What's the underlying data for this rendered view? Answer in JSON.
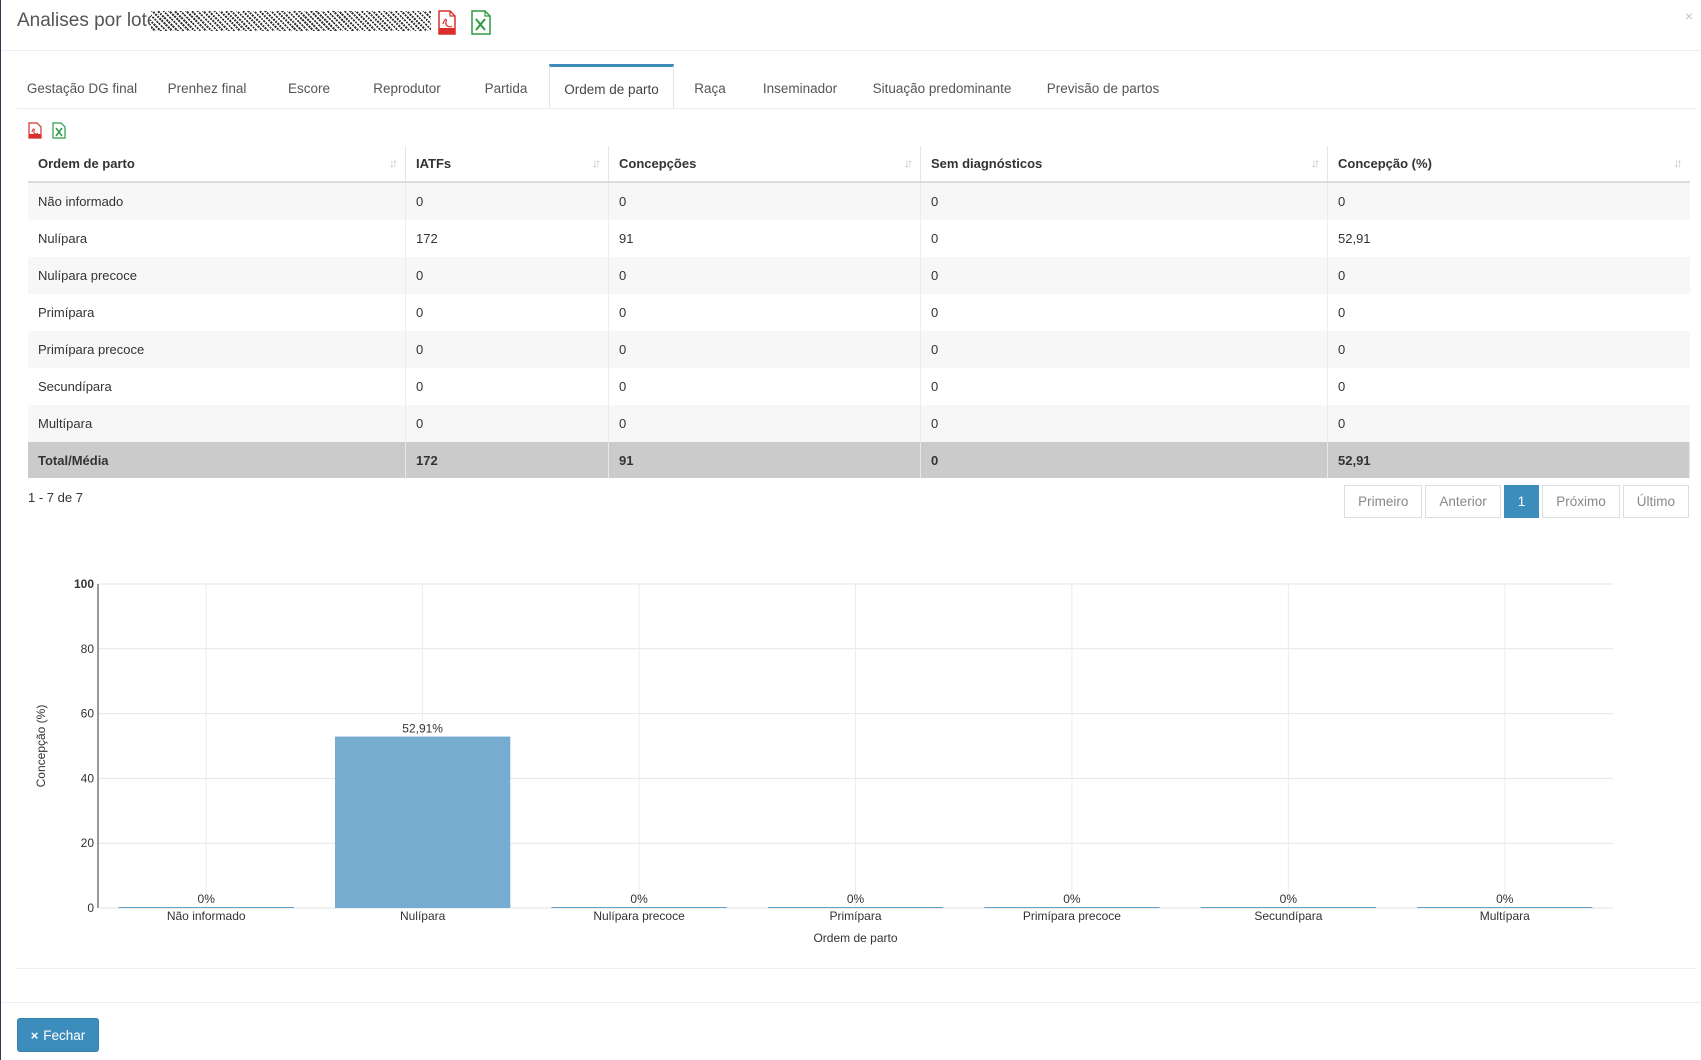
{
  "header": {
    "title": "Analises por lotes",
    "close_symbol": "×",
    "icons": [
      "pdf-icon",
      "excel-icon"
    ]
  },
  "colors": {
    "accent": "#3c8dbc",
    "bar": "#6fa8cc",
    "total_row": "#cbcbcb"
  },
  "tabs": [
    {
      "label": "Gestação DG final"
    },
    {
      "label": "Prenhez final"
    },
    {
      "label": "Escore"
    },
    {
      "label": "Reprodutor"
    },
    {
      "label": "Partida"
    },
    {
      "label": "Ordem de parto",
      "active": true
    },
    {
      "label": "Raça"
    },
    {
      "label": "Inseminador"
    },
    {
      "label": "Situação predominante"
    },
    {
      "label": "Previsão de partos"
    }
  ],
  "table": {
    "columns": [
      "Ordem de parto",
      "IATFs",
      "Concepções",
      "Sem diagnósticos",
      "Concepção (%)"
    ],
    "rows": [
      [
        "Não informado",
        "0",
        "0",
        "0",
        "0"
      ],
      [
        "Nulípara",
        "172",
        "91",
        "0",
        "52,91"
      ],
      [
        "Nulípara precoce",
        "0",
        "0",
        "0",
        "0"
      ],
      [
        "Primípara",
        "0",
        "0",
        "0",
        "0"
      ],
      [
        "Primípara precoce",
        "0",
        "0",
        "0",
        "0"
      ],
      [
        "Secundípara",
        "0",
        "0",
        "0",
        "0"
      ],
      [
        "Multípara",
        "0",
        "0",
        "0",
        "0"
      ]
    ],
    "total": [
      "Total/Média",
      "172",
      "91",
      "0",
      "52,91"
    ]
  },
  "pagination": {
    "info": "1 - 7 de 7",
    "first": "Primeiro",
    "prev": "Anterior",
    "current": "1",
    "next": "Próximo",
    "last": "Último"
  },
  "chart_data": {
    "type": "bar",
    "categories": [
      "Não informado",
      "Nulípara",
      "Nulípara precoce",
      "Primípara",
      "Primípara precoce",
      "Secundípara",
      "Multípara"
    ],
    "values": [
      0,
      52.91,
      0,
      0,
      0,
      0,
      0
    ],
    "data_labels": [
      "0%",
      "52,91%",
      "0%",
      "0%",
      "0%",
      "0%",
      "0%"
    ],
    "xlabel": "Ordem de parto",
    "ylabel": "Concepção (%)",
    "ylim": [
      0,
      100
    ],
    "yticks": [
      0,
      20,
      40,
      60,
      80,
      100
    ],
    "grid": true,
    "legend": "none"
  },
  "footer": {
    "close_label": "Fechar",
    "close_icon": "×"
  }
}
